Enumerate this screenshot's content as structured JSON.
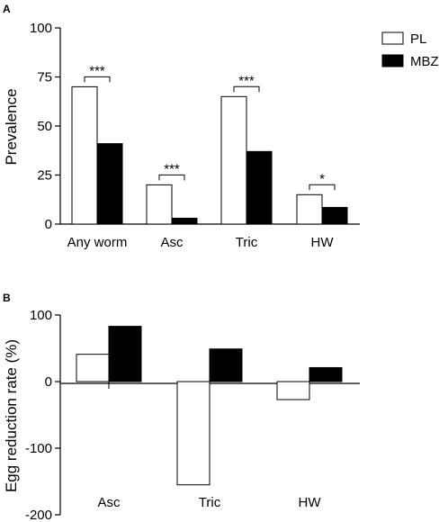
{
  "chart_data": [
    {
      "panel_label": "A",
      "type": "bar",
      "categories": [
        "Any worm",
        "Asc",
        "Tric",
        "HW"
      ],
      "ylabel": "Prevalence",
      "ylim": [
        0,
        100
      ],
      "yticks": [
        0,
        25,
        50,
        75,
        100
      ],
      "legend_position": "top-right",
      "series": [
        {
          "name": "PL",
          "values": [
            70,
            20,
            65,
            15
          ],
          "fill": "#ffffff"
        },
        {
          "name": "MBZ",
          "values": [
            41,
            3,
            37,
            8.5
          ],
          "fill": "#000000"
        }
      ],
      "significance": [
        "***",
        "***",
        "***",
        "*"
      ]
    },
    {
      "panel_label": "B",
      "type": "bar",
      "categories": [
        "Asc",
        "Tric",
        "HW"
      ],
      "ylabel": "Egg reduction rate (%)",
      "ylim": [
        -200,
        100
      ],
      "yticks": [
        -200,
        -100,
        0,
        100
      ],
      "series": [
        {
          "name": "PL",
          "values": [
            41,
            -155,
            -27
          ],
          "fill": "#ffffff"
        },
        {
          "name": "MBZ",
          "values": [
            83,
            49,
            21
          ],
          "fill": "#000000"
        }
      ]
    }
  ]
}
